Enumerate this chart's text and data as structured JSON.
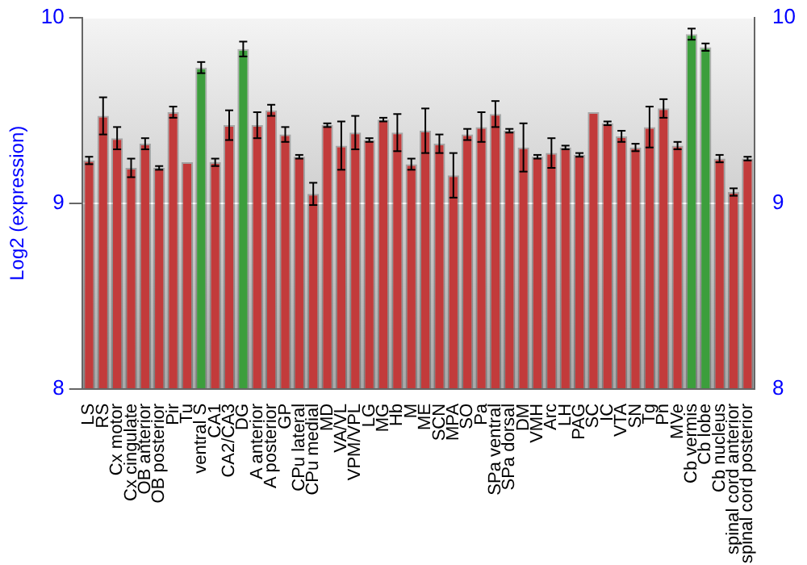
{
  "chart_data": {
    "type": "bar",
    "ylabel": "Log2 (expression)",
    "categories": [
      "LS",
      "RS",
      "Cx motor",
      "Cx cingulate",
      "OB anterior",
      "OB posterior",
      "Pir",
      "Tu",
      "ventral S",
      "CA1",
      "CA2/CA3",
      "DG",
      "A anterior",
      "A posterior",
      "GP",
      "CPu lateral",
      "CPu medial",
      "MD",
      "VA/VL",
      "VPM/VPL",
      "LG",
      "MG",
      "Hb",
      "M",
      "ME",
      "SCN",
      "MPA",
      "SO",
      "Pa",
      "SPa ventral",
      "SPa dorsal",
      "DM",
      "VMH",
      "Arc",
      "LH",
      "PAG",
      "SC",
      "IC",
      "VTA",
      "SN",
      "Tg",
      "Pn",
      "MVe",
      "Cb vermis",
      "Cb lobe",
      "Cb nucleus",
      "spinal cord anterior",
      "spinal cord posterior"
    ],
    "values": [
      9.23,
      9.47,
      9.35,
      9.19,
      9.32,
      9.19,
      9.49,
      9.22,
      9.73,
      9.22,
      9.42,
      9.83,
      9.42,
      9.5,
      9.37,
      9.25,
      9.05,
      9.42,
      9.31,
      9.38,
      9.34,
      9.45,
      9.38,
      9.21,
      9.39,
      9.32,
      9.15,
      9.37,
      9.41,
      9.48,
      9.39,
      9.3,
      9.25,
      9.27,
      9.3,
      9.26,
      9.49,
      9.43,
      9.36,
      9.3,
      9.41,
      9.51,
      9.31,
      9.91,
      9.84,
      9.24,
      9.06,
      9.24
    ],
    "errors": [
      0.02,
      0.1,
      0.06,
      0.05,
      0.03,
      0.01,
      0.03,
      null,
      0.03,
      0.02,
      0.08,
      0.04,
      0.07,
      0.03,
      0.04,
      0.01,
      0.06,
      0.01,
      0.13,
      0.09,
      0.01,
      0.01,
      0.1,
      0.03,
      0.12,
      0.05,
      0.12,
      0.03,
      0.08,
      0.07,
      0.01,
      0.13,
      0.01,
      0.08,
      0.01,
      0.01,
      null,
      0.01,
      0.03,
      0.02,
      0.11,
      0.05,
      0.02,
      0.03,
      0.02,
      0.02,
      0.02,
      0.01
    ],
    "colors": [
      "#c23b3b",
      "#c23b3b",
      "#c23b3b",
      "#c23b3b",
      "#c23b3b",
      "#c23b3b",
      "#c23b3b",
      "#c23b3b",
      "#3c9e3c",
      "#c23b3b",
      "#c23b3b",
      "#3c9e3c",
      "#c23b3b",
      "#c23b3b",
      "#c23b3b",
      "#c23b3b",
      "#c23b3b",
      "#c23b3b",
      "#c23b3b",
      "#c23b3b",
      "#c23b3b",
      "#c23b3b",
      "#c23b3b",
      "#c23b3b",
      "#c23b3b",
      "#c23b3b",
      "#c23b3b",
      "#c23b3b",
      "#c23b3b",
      "#c23b3b",
      "#c23b3b",
      "#c23b3b",
      "#c23b3b",
      "#c23b3b",
      "#c23b3b",
      "#c23b3b",
      "#c23b3b",
      "#c23b3b",
      "#c23b3b",
      "#c23b3b",
      "#c23b3b",
      "#c23b3b",
      "#c23b3b",
      "#3c9e3c",
      "#3c9e3c",
      "#c23b3b",
      "#c23b3b",
      "#c23b3b"
    ],
    "ylim": [
      8,
      10
    ],
    "yticks": [
      8,
      9,
      10
    ],
    "y2lim": [
      8,
      10
    ],
    "y2ticks": [
      8,
      9,
      10
    ],
    "grid": "y",
    "legend": false
  }
}
